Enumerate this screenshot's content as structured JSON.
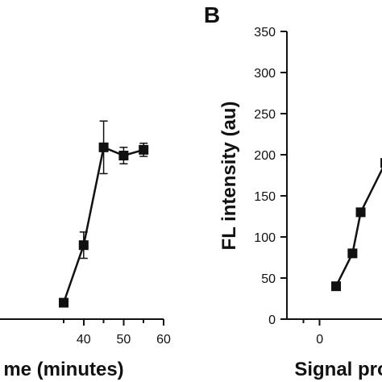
{
  "chart_data": [
    {
      "panel": "",
      "type": "line",
      "title": "",
      "xlabel": "me (minutes)",
      "ylabel": "",
      "xlim": [
        10,
        60
      ],
      "ylim": [
        0,
        350
      ],
      "x_ticks": [
        40,
        50,
        60
      ],
      "x_tick_labels": [
        "40",
        "50",
        "60"
      ],
      "grid": false,
      "series": [
        {
          "x": [
            35,
            40,
            45,
            50,
            55
          ],
          "y": [
            20,
            90,
            209,
            199,
            206
          ],
          "error": [
            0,
            16,
            32,
            10,
            8
          ],
          "marker": "square",
          "color": "#111111"
        }
      ]
    },
    {
      "panel": "B",
      "type": "line",
      "title": "",
      "xlabel": "Signal pro",
      "ylabel": "FL intensity (au)",
      "xlim": [
        -20,
        38
      ],
      "ylim": [
        0,
        350
      ],
      "y_ticks": [
        0,
        50,
        100,
        150,
        200,
        250,
        300,
        350
      ],
      "y_tick_labels": [
        "0",
        "50",
        "100",
        "150",
        "200",
        "250",
        "300",
        "350"
      ],
      "x_ticks": [
        0
      ],
      "x_tick_labels": [
        "0"
      ],
      "grid": false,
      "series": [
        {
          "x": [
            10,
            20,
            25,
            40
          ],
          "y": [
            40,
            80,
            130,
            190
          ],
          "marker": "square",
          "color": "#111111"
        }
      ]
    }
  ]
}
